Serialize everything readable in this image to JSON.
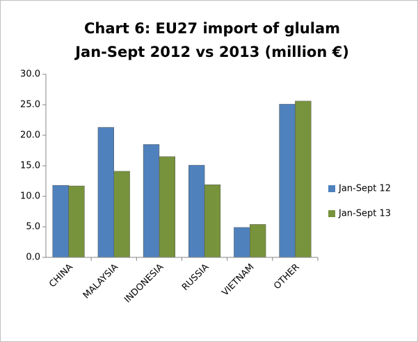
{
  "chart_data": {
    "type": "bar",
    "title": [
      "Chart 6: EU27 import of glulam",
      "Jan-Sept 2012 vs 2013 (million €)"
    ],
    "categories": [
      "CHINA",
      "MALAYSIA",
      "INDONESIA",
      "RUSSIA",
      "VIETNAM",
      "OTHER"
    ],
    "series": [
      {
        "name": "Jan-Sept 12",
        "color": "#4f81bd",
        "values": [
          11.8,
          21.3,
          18.5,
          15.1,
          4.9,
          25.1
        ]
      },
      {
        "name": "Jan-Sept 13",
        "color": "#77933c",
        "values": [
          11.7,
          14.1,
          16.5,
          11.9,
          5.4,
          25.6
        ]
      }
    ],
    "ylim": [
      0,
      30
    ],
    "yticks": [
      {
        "value": 0,
        "label": "0.0"
      },
      {
        "value": 5,
        "label": "5.0"
      },
      {
        "value": 10,
        "label": "10.0"
      },
      {
        "value": 15,
        "label": "15.0"
      },
      {
        "value": 20,
        "label": "20.0"
      },
      {
        "value": 25,
        "label": "25.0"
      },
      {
        "value": 30,
        "label": "30.0"
      }
    ],
    "grid": false,
    "legend": "right"
  }
}
